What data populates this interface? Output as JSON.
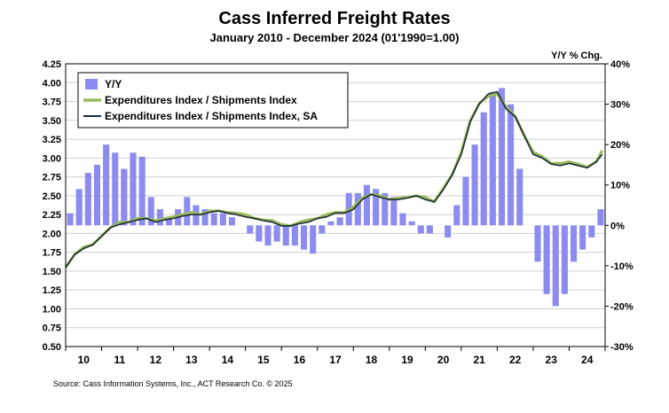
{
  "chart_data": {
    "type": "line",
    "title": "Cass Inferred Freight Rates",
    "subtitle": "January 2010 - December 2024 (01'1990=1.00)",
    "y2_label": "Y/Y % Chg.",
    "source": "Source: Cass Information Systems, Inc., ACT Research Co. © 2025",
    "x_range": [
      2010.0,
      2025.0
    ],
    "ylim": [
      0.5,
      4.25
    ],
    "y_ticks": [
      "4.25",
      "4.00",
      "3.75",
      "3.50",
      "3.25",
      "3.00",
      "2.75",
      "2.50",
      "2.25",
      "2.00",
      "1.75",
      "1.50",
      "1.25",
      "1.00",
      "0.75",
      "0.50"
    ],
    "y2lim": [
      -30,
      40
    ],
    "y2_ticks": [
      "40%",
      "30%",
      "20%",
      "10%",
      "0%",
      "-10%",
      "-20%",
      "-30%"
    ],
    "x_tick_labels": [
      "10",
      "11",
      "12",
      "13",
      "14",
      "15",
      "16",
      "17",
      "18",
      "19",
      "20",
      "21",
      "22",
      "23",
      "24"
    ],
    "grid": "horizontal",
    "legend_position": "top-left",
    "colors": {
      "yy": "#8c8cf0",
      "index": "#9bbb59",
      "index_sa": "#1b2a3a",
      "grid": "#d0d0d0"
    },
    "series": [
      {
        "name": "Y/Y",
        "kind": "bar",
        "axis": "right",
        "x": [
          2010.0,
          2010.25,
          2010.5,
          2010.75,
          2011.0,
          2011.25,
          2011.5,
          2011.75,
          2012.0,
          2012.25,
          2012.5,
          2012.75,
          2013.0,
          2013.25,
          2013.5,
          2013.75,
          2014.0,
          2014.25,
          2014.5,
          2014.75,
          2015.0,
          2015.25,
          2015.5,
          2015.75,
          2016.0,
          2016.25,
          2016.5,
          2016.75,
          2017.0,
          2017.25,
          2017.5,
          2017.75,
          2018.0,
          2018.25,
          2018.5,
          2018.75,
          2019.0,
          2019.25,
          2019.5,
          2019.75,
          2020.0,
          2020.25,
          2020.5,
          2020.75,
          2021.0,
          2021.25,
          2021.5,
          2021.75,
          2022.0,
          2022.25,
          2022.5,
          2022.75,
          2023.0,
          2023.25,
          2023.5,
          2023.75,
          2024.0,
          2024.25,
          2024.5,
          2024.75
        ],
        "values": [
          3,
          9,
          13,
          15,
          20,
          18,
          14,
          18,
          17,
          7,
          4,
          2,
          4,
          7,
          5,
          4,
          3,
          3,
          2,
          0,
          -2,
          -4,
          -5,
          -4,
          -5,
          -5,
          -6,
          -7,
          -2,
          1,
          2,
          8,
          8,
          10,
          9,
          8,
          7,
          3,
          1,
          -2,
          -2,
          0,
          -3,
          5,
          12,
          20,
          28,
          33,
          34,
          30,
          14,
          0,
          -9,
          -17,
          -20,
          -17,
          -9,
          -6,
          -3,
          4
        ]
      },
      {
        "name": "Expenditures Index / Shipments Index",
        "kind": "line",
        "axis": "left",
        "x": [
          2010.0,
          2010.25,
          2010.5,
          2010.75,
          2011.0,
          2011.25,
          2011.5,
          2011.75,
          2012.0,
          2012.25,
          2012.5,
          2012.75,
          2013.0,
          2013.25,
          2013.5,
          2013.75,
          2014.0,
          2014.25,
          2014.5,
          2014.75,
          2015.0,
          2015.25,
          2015.5,
          2015.75,
          2016.0,
          2016.25,
          2016.5,
          2016.75,
          2017.0,
          2017.25,
          2017.5,
          2017.75,
          2018.0,
          2018.25,
          2018.5,
          2018.75,
          2019.0,
          2019.25,
          2019.5,
          2019.75,
          2020.0,
          2020.25,
          2020.5,
          2020.75,
          2021.0,
          2021.25,
          2021.5,
          2021.75,
          2022.0,
          2022.25,
          2022.5,
          2022.75,
          2023.0,
          2023.25,
          2023.5,
          2023.75,
          2024.0,
          2024.25,
          2024.5,
          2024.75,
          2024.92
        ],
        "values": [
          1.55,
          1.72,
          1.82,
          1.85,
          1.97,
          2.08,
          2.15,
          2.15,
          2.2,
          2.2,
          2.17,
          2.2,
          2.22,
          2.25,
          2.28,
          2.25,
          2.3,
          2.3,
          2.28,
          2.27,
          2.25,
          2.2,
          2.18,
          2.17,
          2.12,
          2.1,
          2.15,
          2.18,
          2.2,
          2.25,
          2.28,
          2.28,
          2.35,
          2.47,
          2.52,
          2.5,
          2.45,
          2.47,
          2.48,
          2.5,
          2.48,
          2.42,
          2.6,
          2.78,
          3.08,
          3.5,
          3.72,
          3.82,
          3.85,
          3.68,
          3.55,
          3.3,
          3.08,
          3.02,
          2.93,
          2.93,
          2.95,
          2.92,
          2.88,
          2.95,
          3.1
        ]
      },
      {
        "name": "Expenditures Index / Shipments Index, SA",
        "kind": "line",
        "axis": "left",
        "x": [
          2010.0,
          2010.25,
          2010.5,
          2010.75,
          2011.0,
          2011.25,
          2011.5,
          2011.75,
          2012.0,
          2012.25,
          2012.5,
          2012.75,
          2013.0,
          2013.25,
          2013.5,
          2013.75,
          2014.0,
          2014.25,
          2014.5,
          2014.75,
          2015.0,
          2015.25,
          2015.5,
          2015.75,
          2016.0,
          2016.25,
          2016.5,
          2016.75,
          2017.0,
          2017.25,
          2017.5,
          2017.75,
          2018.0,
          2018.25,
          2018.5,
          2018.75,
          2019.0,
          2019.25,
          2019.5,
          2019.75,
          2020.0,
          2020.25,
          2020.5,
          2020.75,
          2021.0,
          2021.25,
          2021.5,
          2021.75,
          2022.0,
          2022.25,
          2022.5,
          2022.75,
          2023.0,
          2023.25,
          2023.5,
          2023.75,
          2024.0,
          2024.25,
          2024.5,
          2024.75,
          2024.92
        ],
        "values": [
          1.55,
          1.72,
          1.8,
          1.85,
          1.96,
          2.08,
          2.12,
          2.15,
          2.18,
          2.2,
          2.15,
          2.18,
          2.2,
          2.23,
          2.25,
          2.25,
          2.28,
          2.3,
          2.27,
          2.25,
          2.22,
          2.2,
          2.17,
          2.15,
          2.1,
          2.1,
          2.13,
          2.15,
          2.2,
          2.22,
          2.27,
          2.27,
          2.32,
          2.45,
          2.52,
          2.48,
          2.45,
          2.45,
          2.47,
          2.5,
          2.45,
          2.42,
          2.58,
          2.78,
          3.05,
          3.48,
          3.72,
          3.85,
          3.88,
          3.65,
          3.55,
          3.3,
          3.05,
          3.0,
          2.92,
          2.9,
          2.93,
          2.9,
          2.87,
          2.95,
          3.05
        ]
      }
    ]
  }
}
